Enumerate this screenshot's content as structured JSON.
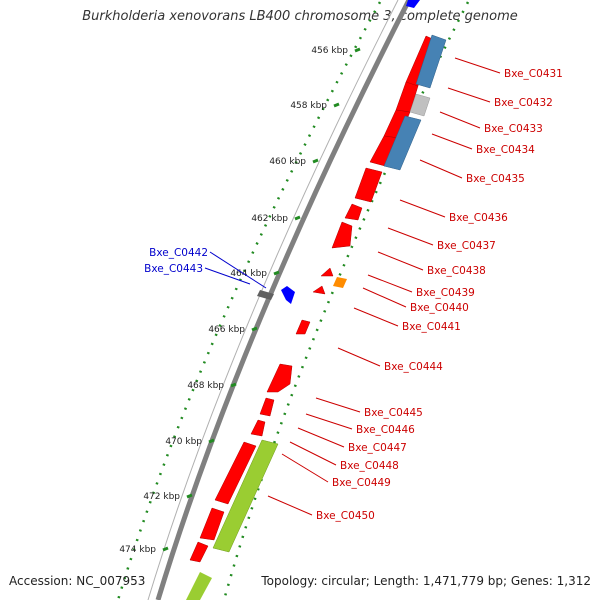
{
  "title": "Burkholderia xenovorans LB400 chromosome 3, complete genome",
  "footer": {
    "accession": "Accession: NC_007953",
    "summary": "Topology: circular; Length: 1,471,779 bp; Genes: 1,312"
  },
  "colors": {
    "backbone": "#808080",
    "forward_gene": "#ff0000",
    "reverse_gene": "#0000ff",
    "cog_blue": "#4682b4",
    "cog_gray": "#c0c0c0",
    "cog_green": "#9acd32",
    "cog_orange": "#ff8c00",
    "dark_gene": "#606060",
    "tick_green": "#228b22",
    "label_right": "#cc0000",
    "label_left": "#0000cc"
  },
  "scale_labels": [
    "456 kbp",
    "458 kbp",
    "460 kbp",
    "462 kbp",
    "464 kbp",
    "466 kbp",
    "468 kbp",
    "470 kbp",
    "472 kbp",
    "474 kbp"
  ],
  "gene_labels_right": [
    "Bxe_C0431",
    "Bxe_C0432",
    "Bxe_C0433",
    "Bxe_C0434",
    "Bxe_C0435",
    "Bxe_C0436",
    "Bxe_C0437",
    "Bxe_C0438",
    "Bxe_C0439",
    "Bxe_C0440",
    "Bxe_C0441",
    "Bxe_C0444",
    "Bxe_C0445",
    "Bxe_C0446",
    "Bxe_C0447",
    "Bxe_C0448",
    "Bxe_C0449",
    "Bxe_C0450"
  ],
  "gene_labels_left": [
    "Bxe_C0442",
    "Bxe_C0443"
  ]
}
